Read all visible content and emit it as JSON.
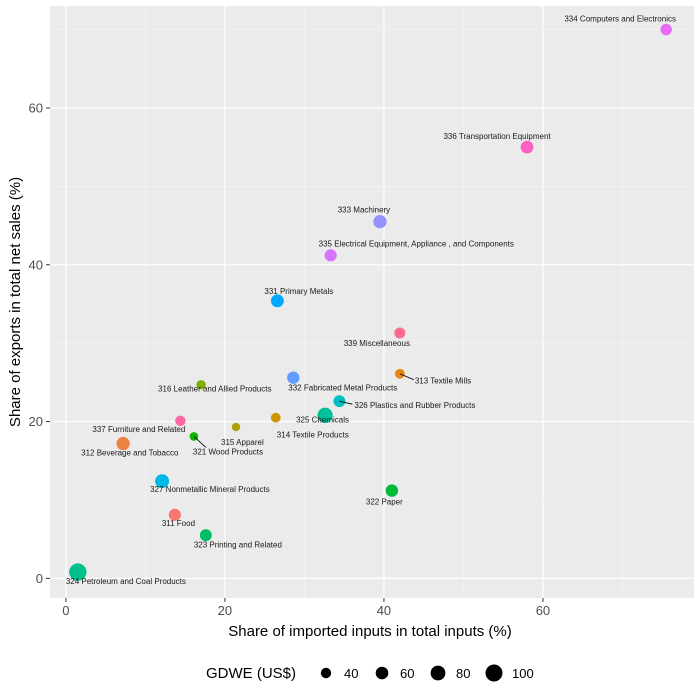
{
  "chart_data": {
    "type": "scatter",
    "xlabel": "Share of imported inputs in total inputs (%)",
    "ylabel": "Share of exports in total net sales (%)",
    "xlim": [
      -2,
      79
    ],
    "ylim": [
      -2.5,
      73
    ],
    "x_ticks": [
      0,
      20,
      40,
      60
    ],
    "y_ticks": [
      0,
      20,
      40,
      60
    ],
    "grid": true,
    "legend": {
      "title": "GDWE (US$)",
      "position": "bottom",
      "sizes": [
        {
          "label": "40",
          "value": 40
        },
        {
          "label": "60",
          "value": 60
        },
        {
          "label": "80",
          "value": 80
        },
        {
          "label": "100",
          "value": 100
        }
      ]
    },
    "points": [
      {
        "label": "334 Computers and Electronics",
        "x": 75.5,
        "y": 70.0,
        "size": 50,
        "color": "#E76BF3"
      },
      {
        "label": "336 Transportation Equipment",
        "x": 58.0,
        "y": 55.0,
        "size": 62,
        "color": "#FF61C3"
      },
      {
        "label": "333 Machinery",
        "x": 39.5,
        "y": 45.5,
        "size": 66,
        "color": "#9590FF"
      },
      {
        "label": "335 Electrical Equipment, Appliance , and Components",
        "x": 33.3,
        "y": 41.2,
        "size": 56,
        "color": "#D575FE"
      },
      {
        "label": "331 Primary Metals",
        "x": 26.6,
        "y": 35.4,
        "size": 62,
        "color": "#00A9FF"
      },
      {
        "label": "339 Miscellaneous",
        "x": 42.0,
        "y": 31.3,
        "size": 46,
        "color": "#FF6C91"
      },
      {
        "label": "313 Textile Mills",
        "x": 42.0,
        "y": 26.1,
        "size": 34,
        "color": "#E68613"
      },
      {
        "label": "332 Fabricated Metal Products",
        "x": 28.6,
        "y": 25.6,
        "size": 58,
        "color": "#619CFF"
      },
      {
        "label": "316 Leather and Allied Products",
        "x": 17.0,
        "y": 24.7,
        "size": 30,
        "color": "#7CAE00"
      },
      {
        "label": "326 Plastics and Rubber Products",
        "x": 34.4,
        "y": 22.6,
        "size": 54,
        "color": "#00BFC4"
      },
      {
        "label": "325 Chemicals",
        "x": 32.6,
        "y": 20.8,
        "size": 84,
        "color": "#00C19A"
      },
      {
        "label": "314 Textile Products",
        "x": 26.4,
        "y": 20.5,
        "size": 34,
        "color": "#CD9600"
      },
      {
        "label": "337 Furniture and Related",
        "x": 14.4,
        "y": 20.1,
        "size": 40,
        "color": "#FF67A4"
      },
      {
        "label": "315 Apparel",
        "x": 21.4,
        "y": 19.3,
        "size": 22,
        "color": "#ABA300"
      },
      {
        "label": "321 Wood Products",
        "x": 16.1,
        "y": 18.1,
        "size": 24,
        "color": "#0CB702"
      },
      {
        "label": "312 Beverage and Tobacco",
        "x": 7.2,
        "y": 17.2,
        "size": 66,
        "color": "#ED8141"
      },
      {
        "label": "327 Nonmetallic Mineral Products",
        "x": 12.1,
        "y": 12.4,
        "size": 72,
        "color": "#00B8E7"
      },
      {
        "label": "322 Paper",
        "x": 41.0,
        "y": 11.2,
        "size": 58,
        "color": "#00BA38"
      },
      {
        "label": "311 Food",
        "x": 13.7,
        "y": 8.1,
        "size": 56,
        "color": "#F8766D"
      },
      {
        "label": "323 Printing and Related",
        "x": 17.6,
        "y": 5.5,
        "size": 54,
        "color": "#00BE67"
      },
      {
        "label": "324 Petroleum and Coal Products",
        "x": 1.5,
        "y": 0.8,
        "size": 104,
        "color": "#00C08B"
      }
    ]
  }
}
